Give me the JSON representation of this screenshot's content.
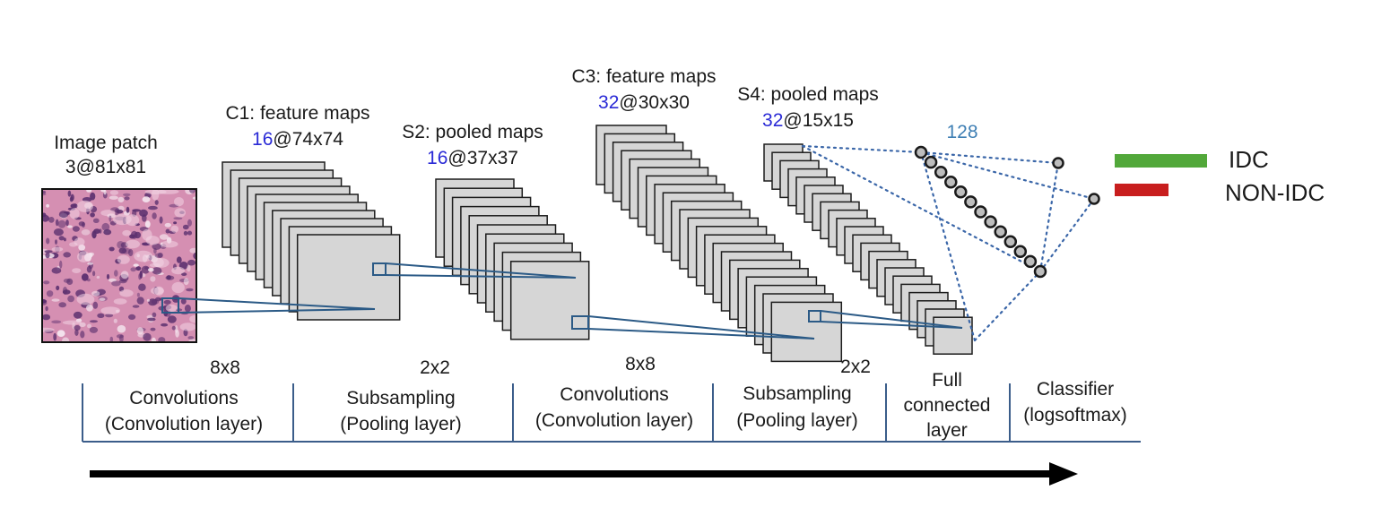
{
  "input": {
    "title": "Image patch",
    "shape": "3@81x81"
  },
  "layers": [
    {
      "title": "C1: feature maps",
      "count": "16",
      "size": "@74x74"
    },
    {
      "title": "S2: pooled maps",
      "count": "16",
      "size": "@37x37"
    },
    {
      "title": "C3: feature maps",
      "count": "32",
      "size": "@30x30"
    },
    {
      "title": "S4: pooled maps",
      "count": "32",
      "size": "@15x15"
    }
  ],
  "fc_units": "128",
  "kernels": [
    "8x8",
    "2x2",
    "8x8",
    "2x2"
  ],
  "stages": [
    [
      "Convolutions",
      "(Convolution layer)"
    ],
    [
      "Subsampling",
      "(Pooling layer)"
    ],
    [
      "Convolutions",
      "(Convolution layer)"
    ],
    [
      "Subsampling",
      "(Pooling layer)"
    ],
    [
      "Full",
      "connected",
      "layer"
    ],
    [
      "Classifier",
      "(logsoftmax)"
    ]
  ],
  "legend": [
    {
      "label": "IDC",
      "color": "#52a83a"
    },
    {
      "label": "NON-IDC",
      "color": "#c81e1e"
    }
  ],
  "colors": {
    "count_text": "#2a2ad6",
    "fc_count_text": "#3f7fb4",
    "tissue_base": "#d58fb2",
    "tissue_stain": "#5a2f6e"
  }
}
